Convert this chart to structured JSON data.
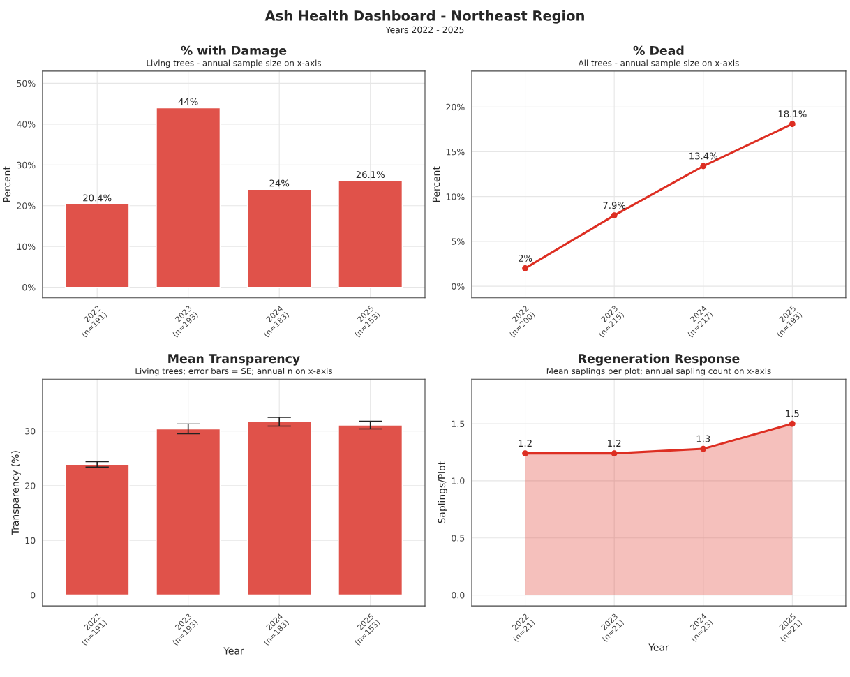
{
  "chart_data": [
    {
      "type": "other",
      "title": "Ash Health Dashboard - Northeast Region",
      "subtitle": "Years 2022 - 2025"
    },
    {
      "type": "bar",
      "title": "% with Damage",
      "subtitle": "Living trees - annual sample size on x-axis",
      "ylabel": "Percent",
      "categories": [
        "2022\n(n=191)",
        "2023\n(n=193)",
        "2024\n(n=183)",
        "2025\n(n=153)"
      ],
      "series": [
        {
          "color": "#e0524a",
          "values": [
            20.4,
            44,
            24,
            26.1
          ],
          "value_labels": [
            "20.4%",
            "44%",
            "24%",
            "26.1%"
          ]
        }
      ],
      "ylim": [
        -2.6,
        53
      ],
      "yticks": [
        {
          "value": 0,
          "label": "0%"
        },
        {
          "value": 10,
          "label": "10%"
        },
        {
          "value": 20,
          "label": "20%"
        },
        {
          "value": 30,
          "label": "30%"
        },
        {
          "value": 40,
          "label": "40%"
        },
        {
          "value": 50,
          "label": "50%"
        }
      ],
      "grid": true
    },
    {
      "type": "line",
      "title": "% Dead",
      "subtitle": "All trees - annual sample size on x-axis",
      "ylabel": "Percent",
      "categories": [
        "2022\n(n=200)",
        "2023\n(n=215)",
        "2024\n(n=217)",
        "2025\n(n=193)"
      ],
      "series": [
        {
          "color": "#dd2e22",
          "values": [
            2,
            7.9,
            13.4,
            18.1
          ],
          "value_labels": [
            "2%",
            "7.9%",
            "13.4%",
            "18.1%"
          ]
        }
      ],
      "marker": "circle",
      "line_style": "solid",
      "ylim": [
        -1.3,
        24
      ],
      "yticks": [
        {
          "value": 0,
          "label": "0%"
        },
        {
          "value": 5,
          "label": "5%"
        },
        {
          "value": 10,
          "label": "10%"
        },
        {
          "value": 15,
          "label": "15%"
        },
        {
          "value": 20,
          "label": "20%"
        }
      ],
      "grid": true
    },
    {
      "type": "bar",
      "title": "Mean Transparency",
      "subtitle": "Living trees; error bars = SE; annual n on x-axis",
      "xlabel": "Year",
      "ylabel": "Transparency (%)",
      "categories": [
        "2022\n(n=191)",
        "2023\n(n=193)",
        "2024\n(n=183)",
        "2025\n(n=153)"
      ],
      "series": [
        {
          "color": "#e0524a",
          "values": [
            23.9,
            30.4,
            31.7,
            31.1
          ],
          "errors": [
            0.5,
            0.9,
            0.8,
            0.7
          ]
        }
      ],
      "ylim": [
        -2,
        39.5
      ],
      "yticks": [
        0,
        10,
        20,
        30
      ],
      "grid": true
    },
    {
      "type": "area",
      "title": "Regeneration Response",
      "subtitle": "Mean saplings per plot; annual sapling count on x-axis",
      "xlabel": "Year",
      "ylabel": "Saplings/Plot",
      "categories": [
        "2022\n(n=21)",
        "2023\n(n=21)",
        "2024\n(n=23)",
        "2025\n(n=21)"
      ],
      "series": [
        {
          "color": "#dd2e22",
          "values": [
            1.24,
            1.24,
            1.28,
            1.5
          ],
          "value_labels": [
            "1.2",
            "1.2",
            "1.3",
            "1.5"
          ]
        }
      ],
      "marker": "circle",
      "line_style": "solid",
      "ylim": [
        -0.095,
        1.89
      ],
      "yticks": [
        {
          "value": 0,
          "label": "0.0"
        },
        {
          "value": 0.5,
          "label": "0.5"
        },
        {
          "value": 1,
          "label": "1.0"
        },
        {
          "value": 1.5,
          "label": "1.5"
        }
      ],
      "grid": true
    }
  ]
}
